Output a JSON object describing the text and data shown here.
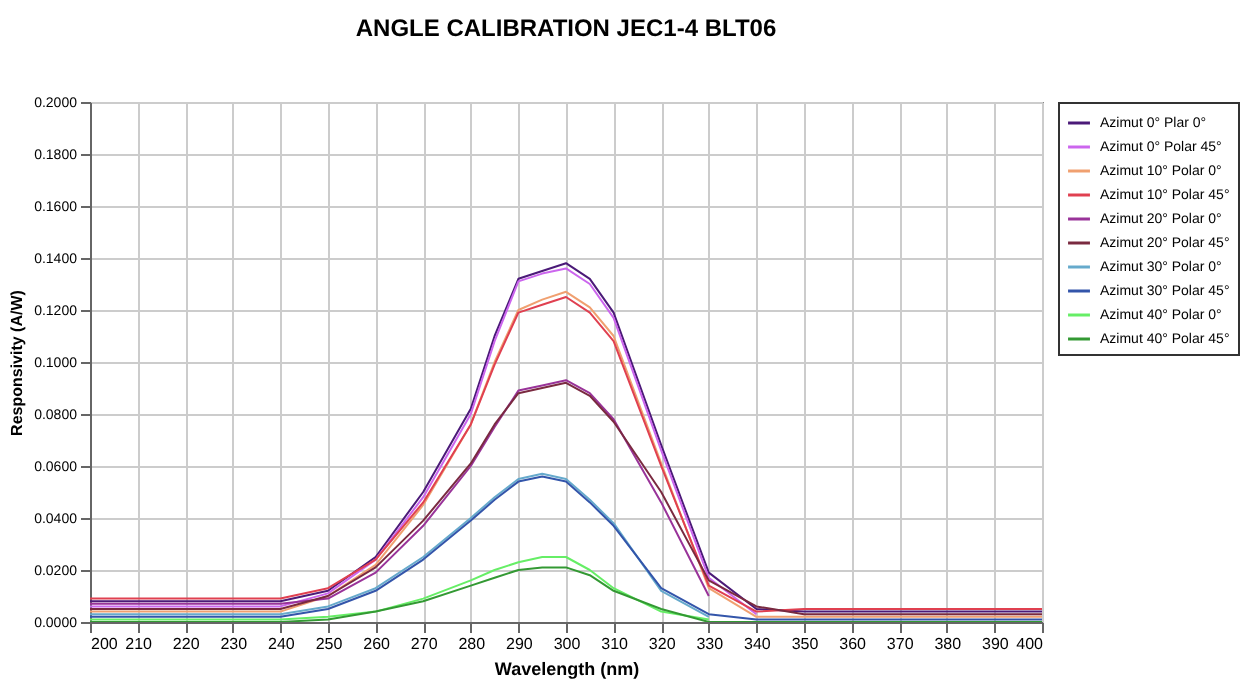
{
  "chart_data": {
    "type": "line",
    "title": "ANGLE CALIBRATION JEC1-4 BLT06",
    "xlabel": "Wavelength (nm)",
    "ylabel": "Responsivity (A/W)",
    "x": [
      200,
      210,
      220,
      230,
      240,
      250,
      260,
      270,
      280,
      285,
      290,
      295,
      300,
      305,
      310,
      320,
      330,
      340,
      350,
      360,
      370,
      380,
      390,
      400
    ],
    "series": [
      {
        "name": "Azimut 0° Plar 0°",
        "color": "#4b1a78",
        "values": [
          0.008,
          0.008,
          0.008,
          0.008,
          0.008,
          0.012,
          0.025,
          0.05,
          0.082,
          0.11,
          0.132,
          0.135,
          0.138,
          0.132,
          0.119,
          0.068,
          0.019,
          0.005,
          0.004,
          0.004,
          0.004,
          0.004,
          0.004,
          0.004
        ]
      },
      {
        "name": "Azimut 0° Polar 45°",
        "color": "#cc66ee",
        "values": [
          0.006,
          0.006,
          0.006,
          0.006,
          0.006,
          0.011,
          0.024,
          0.048,
          0.08,
          0.108,
          0.131,
          0.134,
          0.136,
          0.13,
          0.117,
          0.066,
          0.017,
          0.003,
          null,
          null,
          null,
          null,
          null,
          null
        ]
      },
      {
        "name": "Azimut 10° Polar 0°",
        "color": "#f0a070",
        "values": [
          0.004,
          0.004,
          0.004,
          0.004,
          0.004,
          0.01,
          0.022,
          0.045,
          0.076,
          0.1,
          0.12,
          0.124,
          0.127,
          0.121,
          0.11,
          0.061,
          0.013,
          0.002,
          0.002,
          0.002,
          0.002,
          0.002,
          0.002,
          0.002
        ]
      },
      {
        "name": "Azimut 10° Polar 45°",
        "color": "#e04050",
        "values": [
          0.009,
          0.009,
          0.009,
          0.009,
          0.009,
          0.013,
          0.024,
          0.046,
          0.076,
          0.099,
          0.119,
          0.122,
          0.125,
          0.119,
          0.108,
          0.06,
          0.014,
          0.004,
          0.005,
          0.005,
          0.005,
          0.005,
          0.005,
          0.005
        ]
      },
      {
        "name": "Azimut 20° Polar 0°",
        "color": "#993399",
        "values": [
          0.007,
          0.007,
          0.007,
          0.007,
          0.007,
          0.009,
          0.019,
          0.037,
          0.06,
          0.075,
          0.089,
          0.091,
          0.093,
          0.088,
          0.078,
          0.046,
          0.01,
          null,
          null,
          null,
          null,
          null,
          null,
          null
        ]
      },
      {
        "name": "Azimut 20° Polar 45°",
        "color": "#7a2a40",
        "values": [
          0.005,
          0.005,
          0.005,
          0.005,
          0.005,
          0.01,
          0.021,
          0.039,
          0.061,
          0.076,
          0.088,
          0.09,
          0.092,
          0.087,
          0.077,
          0.05,
          0.016,
          0.006,
          0.003,
          0.003,
          0.003,
          0.003,
          0.003,
          0.003
        ]
      },
      {
        "name": "Azimut 30° Polar 0°",
        "color": "#66aacc",
        "values": [
          0.003,
          0.003,
          0.003,
          0.003,
          0.003,
          0.006,
          0.013,
          0.025,
          0.04,
          0.048,
          0.055,
          0.057,
          0.055,
          0.047,
          0.038,
          0.012,
          0.002,
          null,
          null,
          null,
          null,
          null,
          null,
          null
        ]
      },
      {
        "name": "Azimut 30° Polar 45°",
        "color": "#3355aa",
        "values": [
          0.002,
          0.002,
          0.002,
          0.002,
          0.002,
          0.005,
          0.012,
          0.024,
          0.039,
          0.047,
          0.054,
          0.056,
          0.054,
          0.046,
          0.037,
          0.013,
          0.003,
          0.001,
          0.001,
          0.001,
          0.001,
          0.001,
          0.001,
          0.001
        ]
      },
      {
        "name": "Azimut 40° Polar 0°",
        "color": "#66ee66",
        "values": [
          0.001,
          0.001,
          0.001,
          0.001,
          0.001,
          0.002,
          0.004,
          0.009,
          0.016,
          0.02,
          0.023,
          0.025,
          0.025,
          0.02,
          0.013,
          0.004,
          0.001,
          null,
          null,
          null,
          null,
          null,
          null,
          null
        ]
      },
      {
        "name": "Azimut 40° Polar 45°",
        "color": "#339933",
        "values": [
          0.0,
          0.0,
          0.0,
          0.0,
          0.0,
          0.001,
          0.004,
          0.008,
          0.014,
          0.017,
          0.02,
          0.021,
          0.021,
          0.018,
          0.012,
          0.005,
          0.0,
          0.0,
          0.0,
          0.0,
          0.0,
          0.0,
          0.0,
          0.0
        ]
      }
    ],
    "xlim": [
      200,
      400
    ],
    "xticks": [
      200,
      210,
      220,
      230,
      240,
      250,
      260,
      270,
      280,
      290,
      300,
      310,
      320,
      330,
      340,
      350,
      360,
      370,
      380,
      390,
      400
    ],
    "ylim": [
      0,
      0.2
    ],
    "yticks": [
      {
        "value": 0,
        "label": "0.0000"
      },
      {
        "value": 0.02,
        "label": "0.0200"
      },
      {
        "value": 0.04,
        "label": "0.0400"
      },
      {
        "value": 0.06,
        "label": "0.0600"
      },
      {
        "value": 0.08,
        "label": "0.0800"
      },
      {
        "value": 0.1,
        "label": "0.1000"
      },
      {
        "value": 0.12,
        "label": "0.1200"
      },
      {
        "value": 0.14,
        "label": "0.1400"
      },
      {
        "value": 0.16,
        "label": "0.1600"
      },
      {
        "value": 0.18,
        "label": "0.1800"
      },
      {
        "value": 0.2,
        "label": "0.2000"
      }
    ],
    "grid": true,
    "legend": "right",
    "marker": "none",
    "line_style": "solid"
  }
}
